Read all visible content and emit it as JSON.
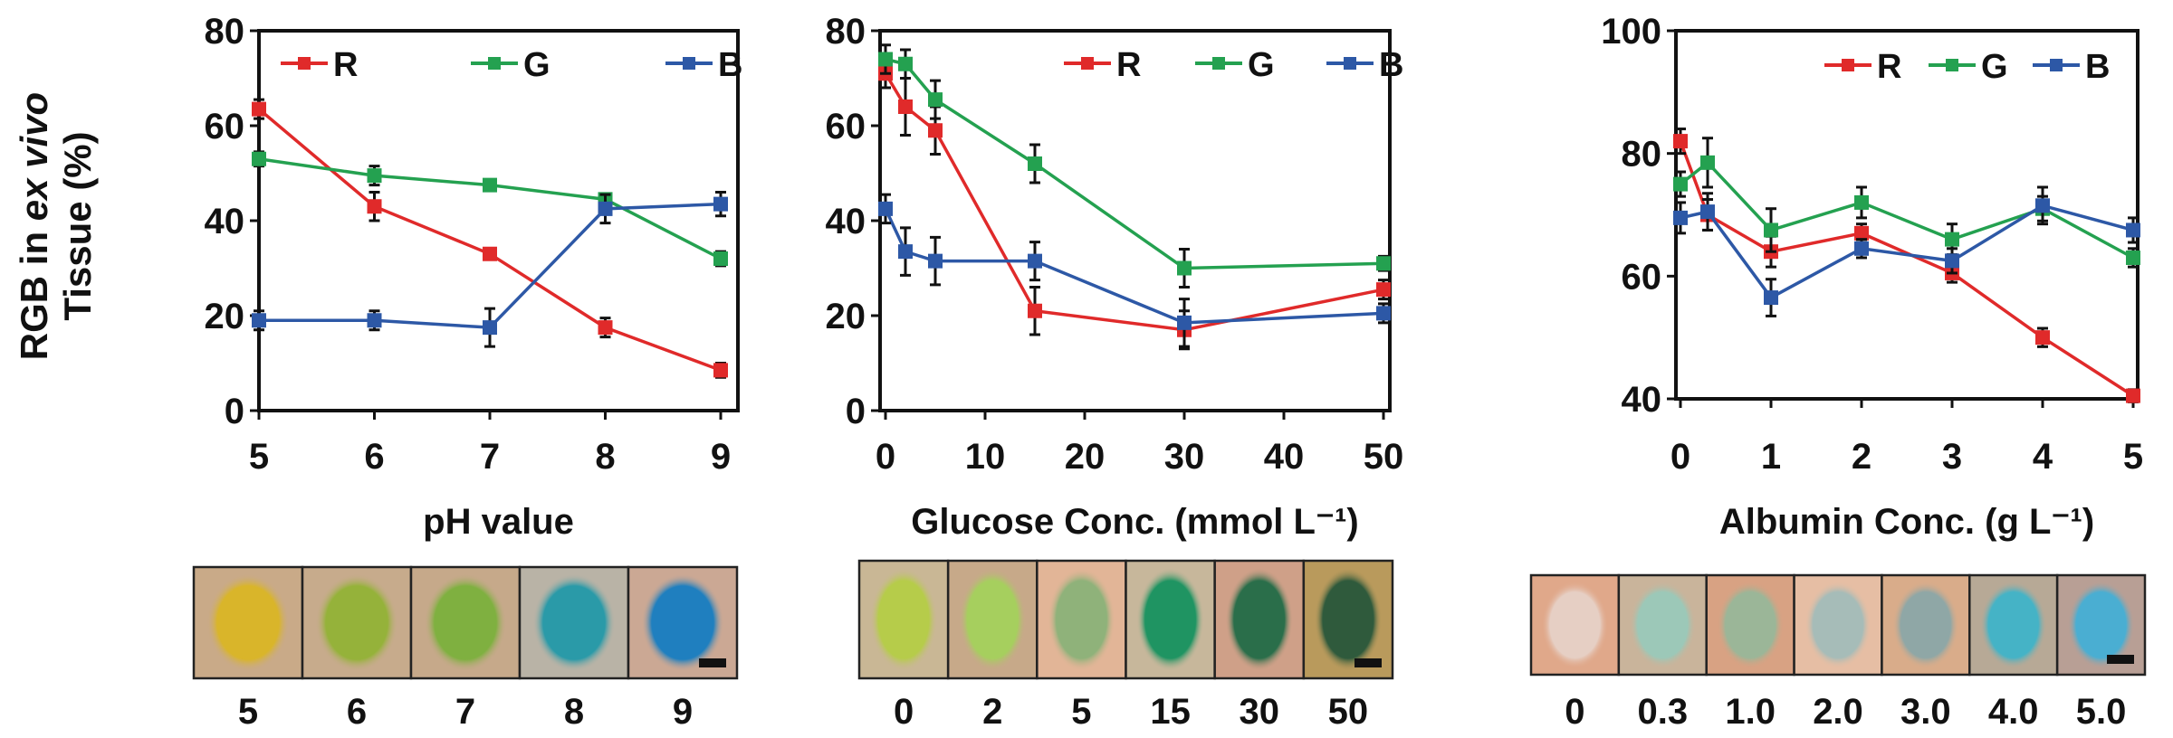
{
  "figure": {
    "ylabel_line1_prefix": "RGB in ",
    "ylabel_line1_italic": "ex vivo",
    "ylabel_line2": "Tissue (%)"
  },
  "series_colors": {
    "R": "#e02a2a",
    "G": "#24a150",
    "B": "#2d58a6"
  },
  "chart_data": [
    {
      "type": "line",
      "xlabel": "pH value",
      "xlim": [
        5,
        9
      ],
      "ylim": [
        0,
        80
      ],
      "xticks": [
        "5",
        "6",
        "7",
        "8",
        "9"
      ],
      "yticks": [
        "0",
        "20",
        "40",
        "60",
        "80"
      ],
      "x": [
        5,
        6,
        7,
        8,
        9
      ],
      "legend": "top",
      "series": [
        {
          "name": "R",
          "values": [
            63.5,
            43,
            33,
            17.5,
            8.5
          ],
          "errors": [
            2,
            3,
            1,
            2,
            1.5
          ]
        },
        {
          "name": "G",
          "values": [
            53,
            49.5,
            47.5,
            44.5,
            32
          ],
          "errors": [
            1.5,
            2,
            1,
            1,
            1.5
          ]
        },
        {
          "name": "B",
          "values": [
            19,
            19,
            17.5,
            42.5,
            43.5
          ],
          "errors": [
            2,
            2,
            4,
            3,
            2.5
          ]
        }
      ],
      "strip": {
        "labels": [
          "5",
          "6",
          "7",
          "8",
          "9"
        ],
        "spot_colors": [
          "#d9b52a",
          "#95b23a",
          "#7fb040",
          "#2a9aa8",
          "#1f7fbf"
        ],
        "bg_colors": [
          "#c9aa88",
          "#c7ab8c",
          "#c6a98a",
          "#b9b3a6",
          "#cba894"
        ]
      }
    },
    {
      "type": "line",
      "xlabel": "Glucose Conc. (mmol L⁻¹)",
      "xlim": [
        0,
        50
      ],
      "ylim": [
        0,
        80
      ],
      "xticks": [
        "0",
        "10",
        "20",
        "30",
        "40",
        "50"
      ],
      "yticks": [
        "0",
        "20",
        "40",
        "60",
        "80"
      ],
      "x": [
        0,
        2,
        5,
        15,
        30,
        50
      ],
      "legend": "top-right",
      "series": [
        {
          "name": "R",
          "values": [
            71,
            64,
            59,
            21,
            17,
            25.5
          ],
          "errors": [
            3,
            6,
            5,
            5,
            4,
            2
          ]
        },
        {
          "name": "G",
          "values": [
            74,
            73,
            65.5,
            52,
            30,
            31
          ],
          "errors": [
            3,
            3,
            4,
            4,
            4,
            1.5
          ]
        },
        {
          "name": "B",
          "values": [
            42.5,
            33.5,
            31.5,
            31.5,
            18.5,
            20.5
          ],
          "errors": [
            3,
            5,
            5,
            4,
            5,
            2
          ]
        }
      ],
      "strip": {
        "labels": [
          "0",
          "2",
          "5",
          "15",
          "30",
          "50"
        ],
        "spot_colors": [
          "#b6cc4a",
          "#a6cf5e",
          "#8fb27a",
          "#1f9462",
          "#2a6e4a",
          "#2f5a3c"
        ],
        "bg_colors": [
          "#c9b795",
          "#c7a989",
          "#e2b597",
          "#c7b79b",
          "#cfa088",
          "#b99a5c"
        ]
      }
    },
    {
      "type": "line",
      "xlabel": "Albumin Conc. (g L⁻¹)",
      "xlim": [
        0,
        5
      ],
      "ylim": [
        40,
        100
      ],
      "xticks": [
        "0",
        "1",
        "2",
        "3",
        "4",
        "5"
      ],
      "yticks": [
        "40",
        "60",
        "80",
        "100"
      ],
      "x": [
        0,
        0.3,
        1,
        2,
        3,
        4,
        5
      ],
      "legend": "top-right",
      "series": [
        {
          "name": "R",
          "values": [
            82,
            70,
            64,
            67,
            60.5,
            50,
            40.5
          ],
          "errors": [
            2,
            2.5,
            2.5,
            1.5,
            1.5,
            1.5,
            1
          ]
        },
        {
          "name": "G",
          "values": [
            75,
            78.5,
            67.5,
            72,
            66,
            71,
            63
          ],
          "errors": [
            2,
            4,
            3.5,
            2.5,
            2.5,
            2,
            1.5
          ]
        },
        {
          "name": "B",
          "values": [
            69.5,
            70.5,
            56.5,
            64.5,
            62.5,
            71.5,
            67.5
          ],
          "errors": [
            2.5,
            3,
            3,
            1.5,
            2,
            3,
            2
          ]
        }
      ],
      "strip": {
        "labels": [
          "0",
          "0.3",
          "1.0",
          "2.0",
          "3.0",
          "4.0",
          "5.0"
        ],
        "spot_colors": [
          "#e6cfc4",
          "#9cc8b8",
          "#9bb698",
          "#a6bcb8",
          "#8fa7a6",
          "#45b3c6",
          "#4aaed2"
        ],
        "bg_colors": [
          "#e0a88a",
          "#c9b49b",
          "#d8a283",
          "#e6bea4",
          "#d9ac8a",
          "#b7a996",
          "#b89f95"
        ]
      }
    }
  ]
}
